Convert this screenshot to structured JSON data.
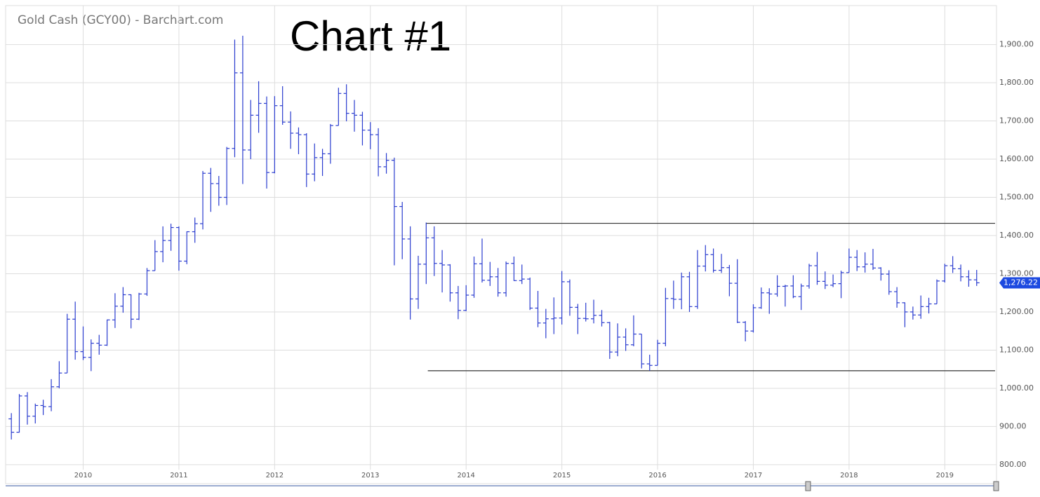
{
  "chart_data": {
    "type": "ohlc",
    "title": "Gold Cash (GCY00) - Barchart.com",
    "annotation": "Chart #1",
    "color": "#2a3ccf",
    "grid": true,
    "xlim": [
      2009.19,
      2019.54
    ],
    "xticks": [
      2010,
      2011,
      2012,
      2013,
      2014,
      2015,
      2016,
      2017,
      2018,
      2019
    ],
    "ylim": [
      787,
      2002
    ],
    "yticks": [
      {
        "value": 800,
        "label": "800.00"
      },
      {
        "value": 900,
        "label": "900.00"
      },
      {
        "value": 1000,
        "label": "1,000.00"
      },
      {
        "value": 1100,
        "label": "1,100.00"
      },
      {
        "value": 1200,
        "label": "1,200.00"
      },
      {
        "value": 1300,
        "label": "1,300.00"
      },
      {
        "value": 1400,
        "label": "1,400.00"
      },
      {
        "value": 1500,
        "label": "1,500.00"
      },
      {
        "value": 1600,
        "label": "1,600.00"
      },
      {
        "value": 1700,
        "label": "1,700.00"
      },
      {
        "value": 1800,
        "label": "1,800.00"
      },
      {
        "value": 1900,
        "label": "1,900.00"
      }
    ],
    "last_price": {
      "value": 1276.22,
      "label": "1,276.22"
    },
    "levels": [
      {
        "value": 1432,
        "from": 2013.58
      },
      {
        "value": 1046,
        "from": 2013.6
      }
    ],
    "x": [
      2009.25,
      2009.333,
      2009.417,
      2009.5,
      2009.583,
      2009.667,
      2009.75,
      2009.833,
      2009.917,
      2010,
      2010.083,
      2010.167,
      2010.25,
      2010.333,
      2010.417,
      2010.5,
      2010.583,
      2010.667,
      2010.75,
      2010.833,
      2010.917,
      2011,
      2011.083,
      2011.167,
      2011.25,
      2011.333,
      2011.417,
      2011.5,
      2011.583,
      2011.667,
      2011.75,
      2011.833,
      2011.917,
      2012,
      2012.083,
      2012.167,
      2012.25,
      2012.333,
      2012.417,
      2012.5,
      2012.583,
      2012.667,
      2012.75,
      2012.833,
      2012.917,
      2013,
      2013.083,
      2013.167,
      2013.25,
      2013.333,
      2013.417,
      2013.5,
      2013.583,
      2013.667,
      2013.75,
      2013.833,
      2013.917,
      2014,
      2014.083,
      2014.167,
      2014.25,
      2014.333,
      2014.417,
      2014.5,
      2014.583,
      2014.667,
      2014.75,
      2014.833,
      2014.917,
      2015,
      2015.083,
      2015.167,
      2015.25,
      2015.333,
      2015.417,
      2015.5,
      2015.583,
      2015.667,
      2015.75,
      2015.833,
      2015.917,
      2016,
      2016.083,
      2016.167,
      2016.25,
      2016.333,
      2016.417,
      2016.5,
      2016.583,
      2016.667,
      2016.75,
      2016.833,
      2016.917,
      2017,
      2017.083,
      2017.167,
      2017.25,
      2017.333,
      2017.417,
      2017.5,
      2017.583,
      2017.667,
      2017.75,
      2017.833,
      2017.917,
      2018,
      2018.083,
      2018.167,
      2018.25,
      2018.333,
      2018.417,
      2018.5,
      2018.583,
      2018.667,
      2018.75,
      2018.833,
      2018.917,
      2019,
      2019.083,
      2019.167,
      2019.25,
      2019.333
    ],
    "open": [
      920,
      885,
      980,
      927,
      955,
      952,
      1004,
      1040,
      1181,
      1096,
      1081,
      1118,
      1113,
      1179,
      1215,
      1245,
      1181,
      1247,
      1308,
      1358,
      1387,
      1421,
      1333,
      1410,
      1431,
      1563,
      1536,
      1500,
      1628,
      1826,
      1624,
      1715,
      1746,
      1565,
      1740,
      1697,
      1668,
      1664,
      1561,
      1604,
      1614,
      1688,
      1772,
      1720,
      1715,
      1676,
      1664,
      1580,
      1597,
      1476,
      1391,
      1234,
      1325,
      1394,
      1327,
      1323,
      1250,
      1204,
      1244,
      1326,
      1283,
      1292,
      1250,
      1327,
      1282,
      1286,
      1210,
      1171,
      1182,
      1184,
      1279,
      1212,
      1183,
      1182,
      1191,
      1172,
      1095,
      1134,
      1114,
      1142,
      1064,
      1060,
      1118,
      1235,
      1233,
      1292,
      1214,
      1320,
      1350,
      1309,
      1316,
      1275,
      1173,
      1150,
      1211,
      1250,
      1247,
      1267,
      1268,
      1240,
      1268,
      1321,
      1280,
      1270,
      1274,
      1303,
      1343,
      1318,
      1325,
      1315,
      1299,
      1253,
      1224,
      1200,
      1192,
      1214,
      1221,
      1281,
      1321,
      1313,
      1292,
      1284
    ],
    "high": [
      935,
      985,
      990,
      960,
      970,
      1024,
      1071,
      1195,
      1227,
      1162,
      1128,
      1140,
      1180,
      1249,
      1265,
      1246,
      1250,
      1315,
      1388,
      1424,
      1431,
      1424,
      1411,
      1447,
      1569,
      1577,
      1556,
      1632,
      1913,
      1923,
      1755,
      1804,
      1764,
      1765,
      1791,
      1725,
      1683,
      1668,
      1641,
      1627,
      1692,
      1787,
      1796,
      1755,
      1724,
      1697,
      1681,
      1616,
      1604,
      1488,
      1424,
      1347,
      1434,
      1424,
      1362,
      1325,
      1268,
      1270,
      1345,
      1392,
      1331,
      1315,
      1332,
      1345,
      1324,
      1290,
      1255,
      1208,
      1238,
      1307,
      1285,
      1221,
      1224,
      1232,
      1205,
      1174,
      1170,
      1157,
      1191,
      1142,
      1088,
      1127,
      1263,
      1282,
      1303,
      1305,
      1362,
      1375,
      1366,
      1352,
      1323,
      1338,
      1176,
      1220,
      1264,
      1262,
      1296,
      1271,
      1296,
      1274,
      1326,
      1357,
      1306,
      1298,
      1308,
      1366,
      1362,
      1356,
      1365,
      1317,
      1309,
      1265,
      1225,
      1214,
      1243,
      1237,
      1285,
      1326,
      1346,
      1324,
      1309,
      1310
    ],
    "low": [
      866,
      884,
      905,
      908,
      930,
      940,
      1000,
      1040,
      1075,
      1074,
      1045,
      1088,
      1111,
      1158,
      1198,
      1157,
      1179,
      1242,
      1308,
      1330,
      1360,
      1308,
      1325,
      1381,
      1416,
      1462,
      1478,
      1480,
      1605,
      1535,
      1600,
      1669,
      1523,
      1563,
      1690,
      1627,
      1613,
      1527,
      1542,
      1556,
      1588,
      1688,
      1699,
      1672,
      1636,
      1626,
      1555,
      1562,
      1322,
      1338,
      1180,
      1208,
      1273,
      1294,
      1251,
      1227,
      1181,
      1202,
      1237,
      1277,
      1268,
      1240,
      1240,
      1281,
      1273,
      1205,
      1160,
      1131,
      1142,
      1167,
      1190,
      1142,
      1175,
      1170,
      1162,
      1077,
      1084,
      1098,
      1110,
      1052,
      1046,
      1060,
      1110,
      1208,
      1207,
      1200,
      1208,
      1306,
      1303,
      1302,
      1241,
      1171,
      1123,
      1146,
      1208,
      1195,
      1240,
      1214,
      1236,
      1205,
      1261,
      1271,
      1260,
      1265,
      1236,
      1303,
      1307,
      1303,
      1310,
      1282,
      1245,
      1211,
      1160,
      1180,
      1182,
      1196,
      1221,
      1277,
      1302,
      1280,
      1266,
      1268
    ],
    "close": [
      885,
      980,
      927,
      955,
      952,
      1004,
      1040,
      1181,
      1096,
      1081,
      1118,
      1113,
      1179,
      1215,
      1245,
      1181,
      1247,
      1308,
      1358,
      1387,
      1421,
      1333,
      1410,
      1431,
      1563,
      1536,
      1500,
      1628,
      1826,
      1624,
      1715,
      1746,
      1565,
      1740,
      1697,
      1668,
      1664,
      1561,
      1604,
      1614,
      1688,
      1772,
      1720,
      1715,
      1676,
      1664,
      1580,
      1597,
      1476,
      1391,
      1234,
      1325,
      1394,
      1327,
      1323,
      1250,
      1204,
      1244,
      1326,
      1283,
      1292,
      1250,
      1327,
      1282,
      1286,
      1210,
      1171,
      1182,
      1184,
      1279,
      1212,
      1183,
      1182,
      1191,
      1172,
      1095,
      1134,
      1114,
      1142,
      1064,
      1060,
      1118,
      1235,
      1233,
      1292,
      1214,
      1320,
      1350,
      1309,
      1316,
      1275,
      1173,
      1150,
      1211,
      1250,
      1247,
      1267,
      1268,
      1240,
      1268,
      1321,
      1280,
      1270,
      1274,
      1303,
      1343,
      1318,
      1325,
      1315,
      1299,
      1253,
      1224,
      1200,
      1192,
      1214,
      1221,
      1281,
      1321,
      1313,
      1292,
      1284,
      1276.22
    ]
  }
}
